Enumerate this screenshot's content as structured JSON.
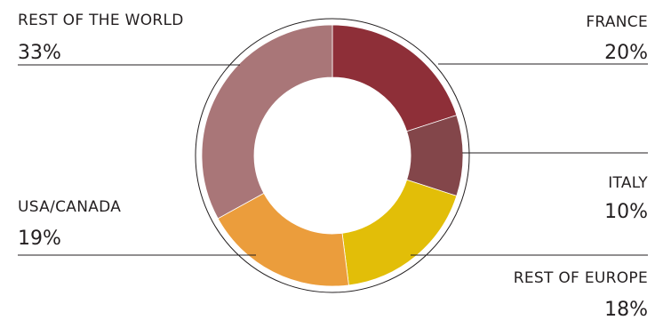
{
  "chart_data": {
    "type": "pie",
    "style": "donut",
    "slices": [
      {
        "label": "FRANCE",
        "value": 20,
        "value_label": "20%",
        "color": "#8e2f38"
      },
      {
        "label": "ITALY",
        "value": 10,
        "value_label": "10%",
        "color": "#83464a"
      },
      {
        "label": "REST OF EUROPE",
        "value": 18,
        "value_label": "18%",
        "color": "#e2be08"
      },
      {
        "label": "USA/CANADA",
        "value": 19,
        "value_label": "19%",
        "color": "#eb9d3c"
      },
      {
        "label": "REST OF THE WORLD",
        "value": 33,
        "value_label": "33%",
        "color": "#a97678"
      }
    ],
    "start_angle": "12 o'clock",
    "direction": "clockwise",
    "outer_ring": true
  }
}
